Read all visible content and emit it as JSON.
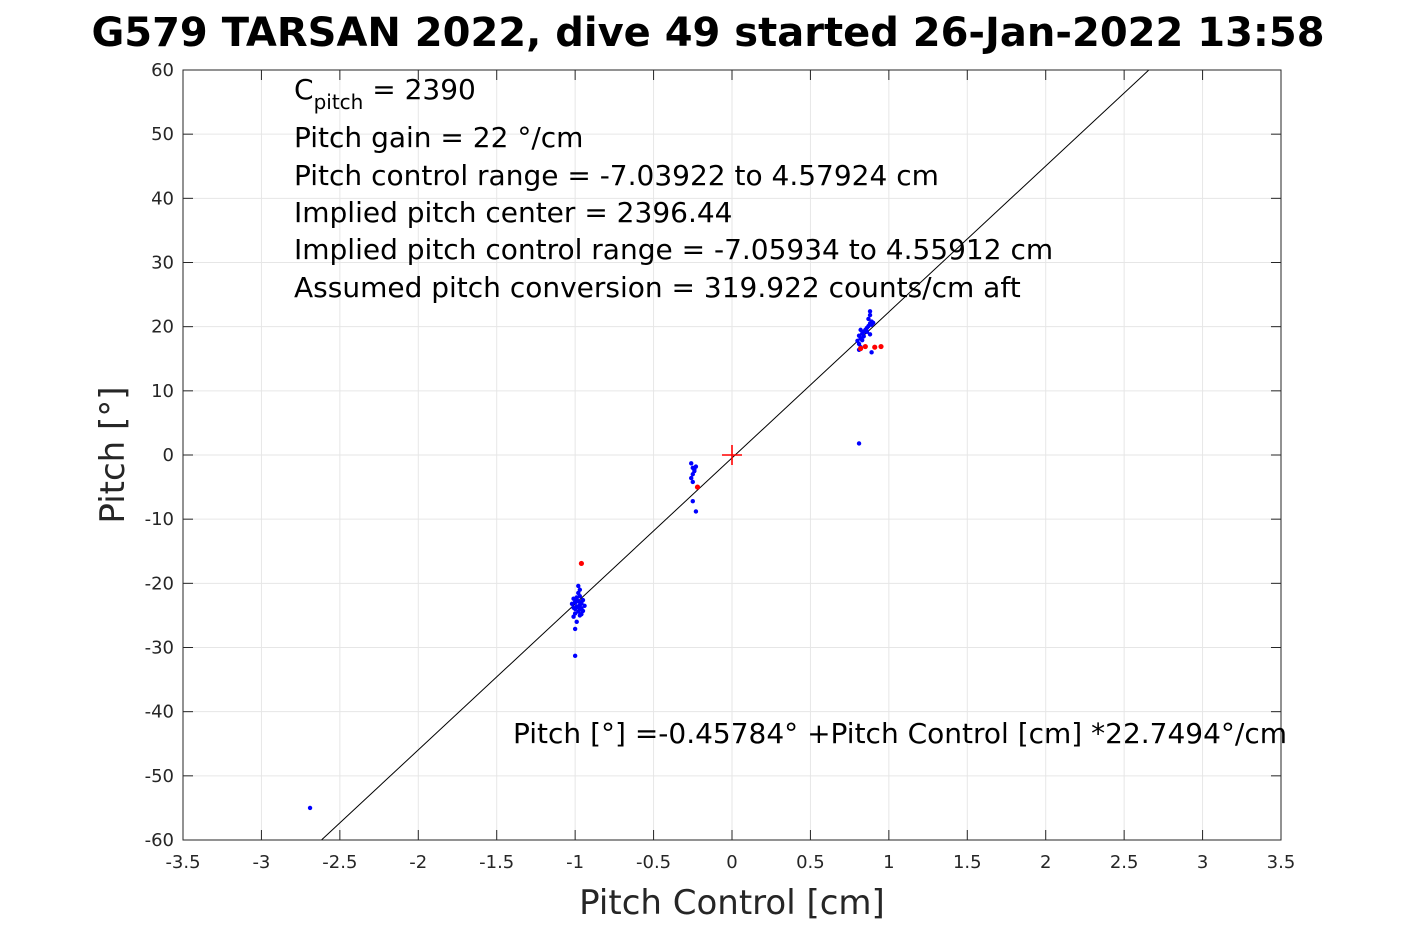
{
  "chart_data": {
    "type": "scatter",
    "title": "G579 TARSAN 2022, dive 49 started 26-Jan-2022 13:58",
    "xlabel": "Pitch Control [cm]",
    "ylabel": "Pitch [°]",
    "xlim": [
      -3.5,
      3.5
    ],
    "ylim": [
      -60,
      60
    ],
    "xticks": [
      -3.5,
      -3,
      -2.5,
      -2,
      -1.5,
      -1,
      -0.5,
      0,
      0.5,
      1,
      1.5,
      2,
      2.5,
      3,
      3.5
    ],
    "xtick_labels": [
      "-3.5",
      "-3",
      "-2.5",
      "-2",
      "-1.5",
      "-1",
      "-0.5",
      "0",
      "0.5",
      "1",
      "1.5",
      "2",
      "2.5",
      "3",
      "3.5"
    ],
    "yticks": [
      -60,
      -50,
      -40,
      -30,
      -20,
      -10,
      0,
      10,
      20,
      30,
      40,
      50,
      60
    ],
    "ytick_labels": [
      "-60",
      "-50",
      "-40",
      "-30",
      "-20",
      "-10",
      "0",
      "10",
      "20",
      "30",
      "40",
      "50",
      "60"
    ],
    "grid": true,
    "colors": {
      "blue": "#0000ff",
      "red": "#ff0000",
      "fit_line": "#000000",
      "grid": "#e6e6e6"
    },
    "fit_line": {
      "intercept": -0.45784,
      "slope": 22.7494
    },
    "center_marker": {
      "x": 0,
      "y": 0
    },
    "series": [
      {
        "color": "#0000ff",
        "points": [
          [
            -2.69,
            -55.0
          ],
          [
            -1.0,
            -31.3
          ],
          [
            -1.0,
            -27.1
          ],
          [
            -0.99,
            -26.0
          ],
          [
            -1.01,
            -25.2
          ],
          [
            -1.0,
            -24.7
          ],
          [
            -0.98,
            -24.4
          ],
          [
            -0.97,
            -24.1
          ],
          [
            -0.95,
            -24.3
          ],
          [
            -1.01,
            -23.8
          ],
          [
            -0.99,
            -23.6
          ],
          [
            -0.97,
            -23.4
          ],
          [
            -0.96,
            -23.9
          ],
          [
            -0.94,
            -23.5
          ],
          [
            -1.02,
            -23.2
          ],
          [
            -1.0,
            -23.0
          ],
          [
            -0.98,
            -22.8
          ],
          [
            -0.96,
            -22.9
          ],
          [
            -0.95,
            -22.6
          ],
          [
            -1.01,
            -22.4
          ],
          [
            -0.99,
            -22.2
          ],
          [
            -0.97,
            -22.0
          ],
          [
            -0.96,
            -23.1
          ],
          [
            -0.98,
            -21.5
          ],
          [
            -0.97,
            -21.0
          ],
          [
            -0.98,
            -20.4
          ],
          [
            -1.0,
            -24.0
          ],
          [
            -0.99,
            -22.5
          ],
          [
            -0.97,
            -25.0
          ],
          [
            -0.96,
            -24.8
          ],
          [
            -1.0,
            -22.9
          ],
          [
            -0.98,
            -23.7
          ],
          [
            -0.26,
            -1.3
          ],
          [
            -0.25,
            -2.0
          ],
          [
            -0.24,
            -2.5
          ],
          [
            -0.23,
            -1.8
          ],
          [
            -0.25,
            -3.0
          ],
          [
            -0.26,
            -3.6
          ],
          [
            -0.25,
            -4.2
          ],
          [
            -0.24,
            -2.2
          ],
          [
            -0.25,
            -7.2
          ],
          [
            -0.23,
            -8.8
          ],
          [
            0.81,
            1.8
          ],
          [
            0.81,
            16.4
          ],
          [
            0.82,
            16.8
          ],
          [
            0.81,
            17.3
          ],
          [
            0.8,
            17.8
          ],
          [
            0.82,
            18.2
          ],
          [
            0.81,
            18.6
          ],
          [
            0.83,
            18.9
          ],
          [
            0.84,
            19.2
          ],
          [
            0.85,
            19.5
          ],
          [
            0.86,
            19.8
          ],
          [
            0.87,
            20.1
          ],
          [
            0.88,
            20.5
          ],
          [
            0.89,
            20.8
          ],
          [
            0.87,
            21.2
          ],
          [
            0.88,
            21.8
          ],
          [
            0.88,
            22.4
          ],
          [
            0.89,
            20.3
          ],
          [
            0.9,
            20.6
          ],
          [
            0.86,
            19.2
          ],
          [
            0.84,
            18.5
          ],
          [
            0.83,
            17.9
          ],
          [
            0.82,
            19.5
          ],
          [
            0.88,
            18.8
          ],
          [
            0.89,
            16.0
          ]
        ]
      },
      {
        "color": "#ff0000",
        "points": [
          [
            -0.96,
            -16.9
          ],
          [
            -0.22,
            -5.0
          ],
          [
            0.85,
            16.9
          ],
          [
            0.91,
            16.8
          ],
          [
            0.95,
            16.9
          ],
          [
            0.82,
            16.6
          ]
        ]
      }
    ],
    "annotations": {
      "c_pitch_main": "C",
      "c_pitch_sub": "pitch",
      "c_pitch_value": " = 2390",
      "gain": "Pitch gain = 22 °/cm",
      "range": "Pitch control range = -7.03922 to 4.57924 cm",
      "center": "Implied pitch center = 2396.44",
      "implied_range": "Implied pitch control range = -7.05934 to 4.55912 cm",
      "conversion": "Assumed pitch conversion = 319.922 counts/cm aft",
      "fit_equation": "Pitch [°] =-0.45784° +Pitch Control [cm] *22.7494°/cm"
    }
  }
}
